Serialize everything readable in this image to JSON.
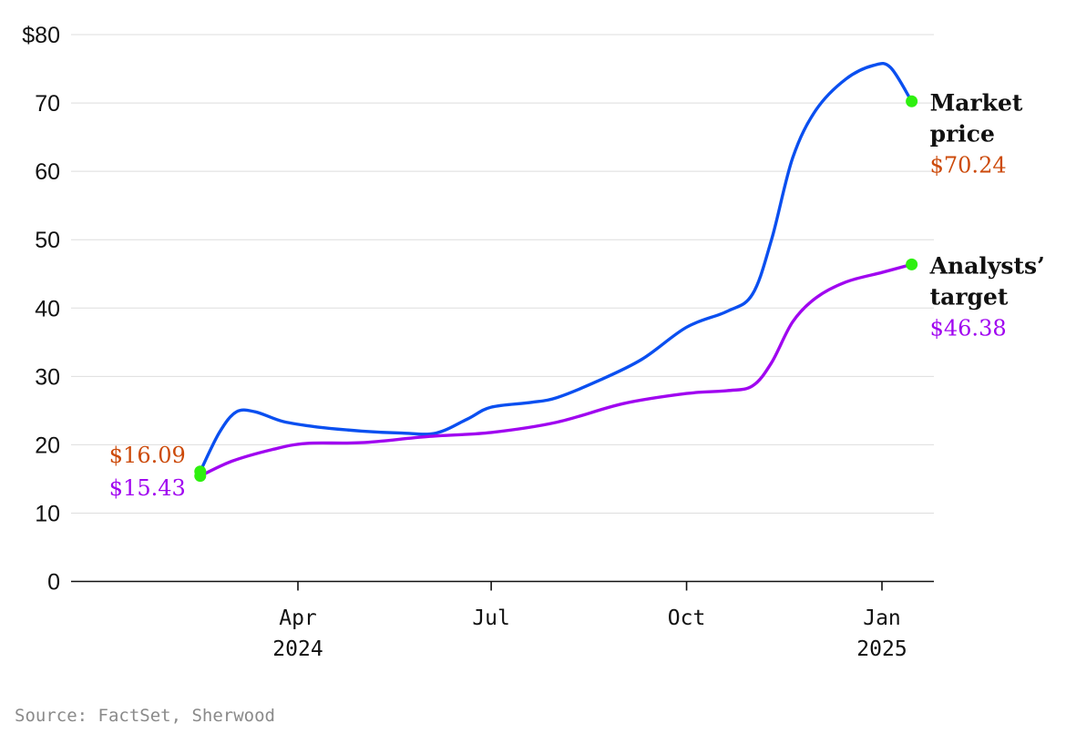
{
  "chart_data": {
    "type": "line",
    "ylim": [
      0,
      80
    ],
    "y_ticks": [
      {
        "value": 80,
        "label": "$80"
      },
      {
        "value": 70,
        "label": "70"
      },
      {
        "value": 60,
        "label": "60"
      },
      {
        "value": 50,
        "label": "50"
      },
      {
        "value": 40,
        "label": "40"
      },
      {
        "value": 30,
        "label": "30"
      },
      {
        "value": 20,
        "label": "20"
      },
      {
        "value": 10,
        "label": "10"
      },
      {
        "value": 0,
        "label": "0"
      }
    ],
    "x_ticks": [
      {
        "date": "2024-04-01",
        "line1": "Apr",
        "line2": "2024"
      },
      {
        "date": "2024-07-01",
        "line1": "Jul",
        "line2": ""
      },
      {
        "date": "2024-10-01",
        "line1": "Oct",
        "line2": ""
      },
      {
        "date": "2025-01-01",
        "line1": "Jan",
        "line2": "2025"
      }
    ],
    "grid": true,
    "series": [
      {
        "name": "Market price",
        "name_lines": [
          "Market",
          "price"
        ],
        "color": "#0a4ff0",
        "label_color": "#cc4a0a",
        "start_label": "$16.09",
        "end_label": "$70.24",
        "points": [
          [
            "2024-02-15",
            16.09
          ],
          [
            "2024-02-24",
            21.8
          ],
          [
            "2024-03-03",
            24.8
          ],
          [
            "2024-03-12",
            24.8
          ],
          [
            "2024-03-25",
            23.4
          ],
          [
            "2024-04-10",
            22.6
          ],
          [
            "2024-05-01",
            22.0
          ],
          [
            "2024-05-20",
            21.7
          ],
          [
            "2024-06-05",
            21.7
          ],
          [
            "2024-06-20",
            23.8
          ],
          [
            "2024-07-01",
            25.5
          ],
          [
            "2024-07-20",
            26.2
          ],
          [
            "2024-08-01",
            26.9
          ],
          [
            "2024-08-20",
            29.3
          ],
          [
            "2024-09-10",
            32.5
          ],
          [
            "2024-10-01",
            37.2
          ],
          [
            "2024-10-20",
            39.5
          ],
          [
            "2024-11-01",
            42.0
          ],
          [
            "2024-11-10",
            50.0
          ],
          [
            "2024-11-20",
            62.0
          ],
          [
            "2024-12-01",
            69.0
          ],
          [
            "2024-12-15",
            73.5
          ],
          [
            "2024-12-28",
            75.5
          ],
          [
            "2025-01-05",
            75.2
          ],
          [
            "2025-01-15",
            70.24
          ]
        ]
      },
      {
        "name": "Analysts’ target",
        "name_lines": [
          "Analysts’",
          "target"
        ],
        "color": "#a005f0",
        "label_color": "#a005f0",
        "start_label": "$15.43",
        "end_label": "$46.38",
        "points": [
          [
            "2024-02-15",
            15.43
          ],
          [
            "2024-03-01",
            17.6
          ],
          [
            "2024-03-20",
            19.3
          ],
          [
            "2024-04-05",
            20.2
          ],
          [
            "2024-05-01",
            20.3
          ],
          [
            "2024-06-01",
            21.2
          ],
          [
            "2024-07-01",
            21.8
          ],
          [
            "2024-08-01",
            23.3
          ],
          [
            "2024-09-01",
            26.0
          ],
          [
            "2024-10-01",
            27.5
          ],
          [
            "2024-10-20",
            27.9
          ],
          [
            "2024-11-01",
            28.6
          ],
          [
            "2024-11-10",
            32.0
          ],
          [
            "2024-11-20",
            38.0
          ],
          [
            "2024-12-01",
            41.5
          ],
          [
            "2024-12-15",
            43.8
          ],
          [
            "2025-01-01",
            45.2
          ],
          [
            "2025-01-15",
            46.38
          ]
        ]
      }
    ],
    "marker_color": "#2ef00f"
  },
  "source": "Source: FactSet, Sherwood"
}
